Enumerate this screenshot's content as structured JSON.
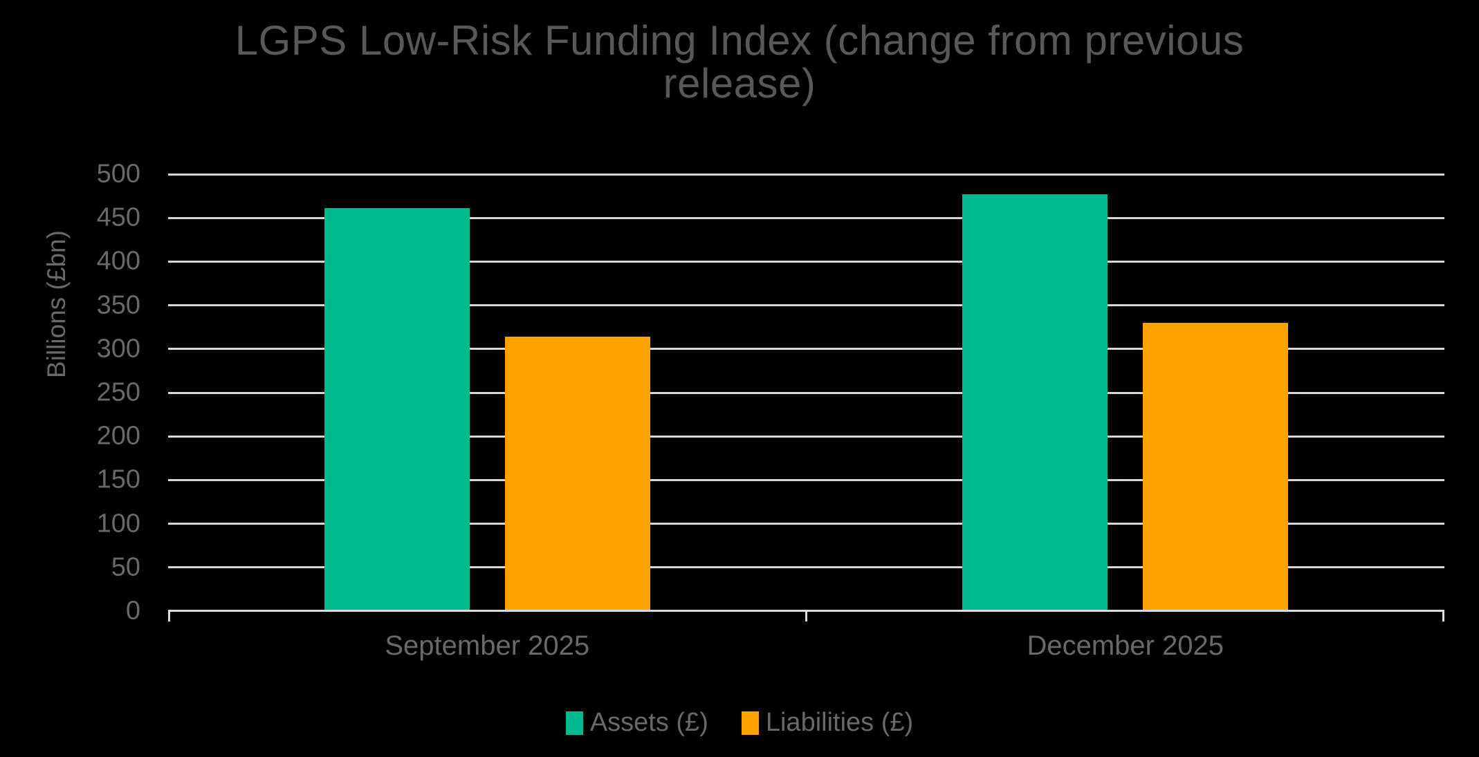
{
  "page": {
    "background": "#000000"
  },
  "chart_data": {
    "type": "bar",
    "title": "LGPS Low-Risk Funding Index (change from previous release)",
    "ylabel": "Billions (£bn)",
    "xlabel": "",
    "categories": [
      "September 2025",
      "December 2025"
    ],
    "series": [
      {
        "name": "Assets (£)",
        "color": "#00b98e",
        "values": [
          461,
          477
        ]
      },
      {
        "name": "Liabilities (£)",
        "color": "#ffa200",
        "values": [
          314,
          330
        ]
      }
    ],
    "ylim": [
      0,
      500
    ],
    "yticks": [
      0,
      50,
      100,
      150,
      200,
      250,
      300,
      350,
      400,
      450,
      500
    ],
    "grid": true,
    "legend_position": "bottom",
    "colors": {
      "background": "#000000",
      "grid_line": "#d6d6d6",
      "axis_line": "#dcdcdc",
      "title_text": "#58585a",
      "label_text": "#69696b"
    }
  }
}
